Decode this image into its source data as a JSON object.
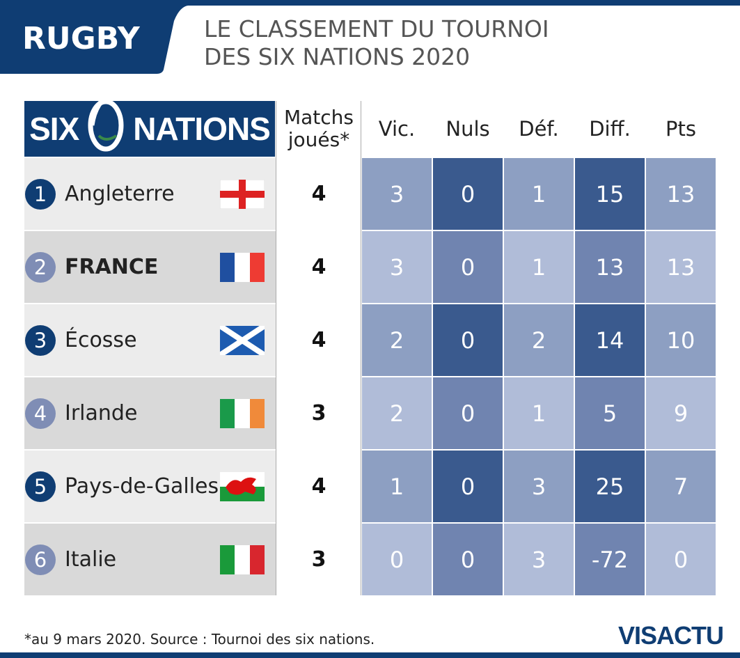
{
  "header": {
    "section": "RUGBY",
    "title_lines": [
      "LE CLASSEMENT DU TOURNOI",
      "DES SIX NATIONS 2020"
    ]
  },
  "logo": {
    "left": "SIX",
    "right": "NATIONS"
  },
  "table": {
    "columns": [
      "Matchs joués*",
      "Vic.",
      "Nuls",
      "Déf.",
      "Diff.",
      "Pts"
    ],
    "rows": [
      [
        1,
        "Angleterre",
        4,
        3,
        0,
        1,
        15,
        13
      ],
      [
        2,
        "FRANCE",
        4,
        3,
        0,
        1,
        13,
        13
      ],
      [
        3,
        "Écosse",
        4,
        2,
        0,
        2,
        14,
        10
      ],
      [
        4,
        "Irlande",
        3,
        2,
        0,
        1,
        5,
        9
      ],
      [
        5,
        "Pays-de-Galles",
        4,
        1,
        0,
        3,
        25,
        7
      ],
      [
        6,
        "Italie",
        3,
        0,
        0,
        3,
        -72,
        0
      ]
    ]
  },
  "footer": {
    "note": "*au 9 mars 2020. Source : Tournoi des six nations.",
    "brand": "VISACTU"
  }
}
